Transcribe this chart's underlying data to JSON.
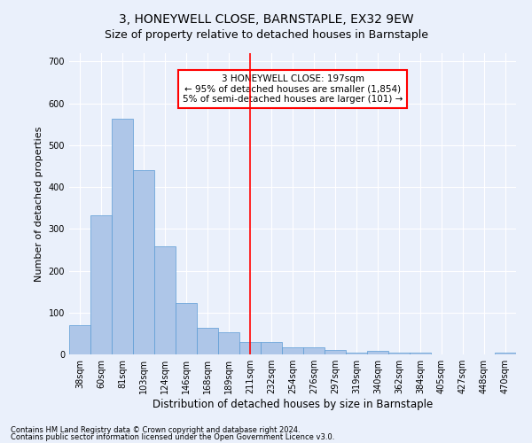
{
  "title": "3, HONEYWELL CLOSE, BARNSTAPLE, EX32 9EW",
  "subtitle": "Size of property relative to detached houses in Barnstaple",
  "xlabel": "Distribution of detached houses by size in Barnstaple",
  "ylabel": "Number of detached properties",
  "categories": [
    "38sqm",
    "60sqm",
    "81sqm",
    "103sqm",
    "124sqm",
    "146sqm",
    "168sqm",
    "189sqm",
    "211sqm",
    "232sqm",
    "254sqm",
    "276sqm",
    "297sqm",
    "319sqm",
    "340sqm",
    "362sqm",
    "384sqm",
    "405sqm",
    "427sqm",
    "448sqm",
    "470sqm"
  ],
  "values": [
    70,
    332,
    563,
    441,
    258,
    122,
    64,
    53,
    29,
    29,
    16,
    16,
    11,
    5,
    8,
    5,
    4,
    0,
    0,
    0,
    5
  ],
  "bar_color": "#aec6e8",
  "bar_edge_color": "#5b9bd5",
  "vline_x": 8.0,
  "vline_color": "red",
  "annotation_text": "3 HONEYWELL CLOSE: 197sqm\n← 95% of detached houses are smaller (1,854)\n5% of semi-detached houses are larger (101) →",
  "annotation_box_color": "white",
  "annotation_box_edge_color": "red",
  "ylim": [
    0,
    720
  ],
  "yticks": [
    0,
    100,
    200,
    300,
    400,
    500,
    600,
    700
  ],
  "footer1": "Contains HM Land Registry data © Crown copyright and database right 2024.",
  "footer2": "Contains public sector information licensed under the Open Government Licence v3.0.",
  "bg_color": "#eaf0fb",
  "plot_bg_color": "#eaf0fb",
  "grid_color": "white",
  "title_fontsize": 10,
  "subtitle_fontsize": 9,
  "tick_fontsize": 7,
  "ylabel_fontsize": 8,
  "xlabel_fontsize": 8.5,
  "annotation_fontsize": 7.5,
  "footer_fontsize": 6
}
